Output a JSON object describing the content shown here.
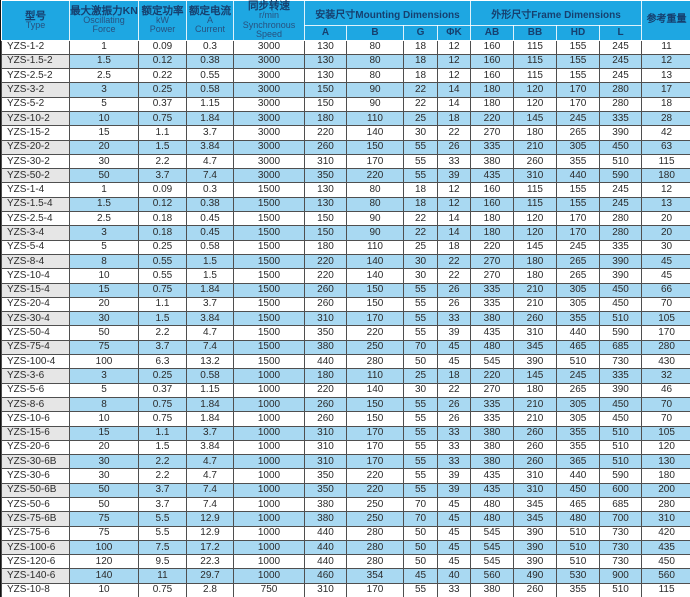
{
  "colors": {
    "header_bg": "#1ea7e2",
    "row_bg": "#ffffff",
    "row_alt_bg": "#a9d9f2",
    "type_col_alt_bg": "#e6e6e6",
    "header_text": "#16406f",
    "body_text": "#2b2b2b",
    "border": "#4f4f4f"
  },
  "table": {
    "headers": {
      "type_zh": "型号",
      "type_en": "Type",
      "force_zh": "最大激振力KN",
      "force_en1": "Oscillating",
      "force_en2": "Force",
      "power_zh": "额定功率",
      "power_en1": "kW",
      "power_en2": "Power",
      "current_zh": "额定电流",
      "current_en1": "A",
      "current_en2": "Current",
      "speed_zh": "同步转速",
      "speed_en1": "r/min",
      "speed_en2": "Synchronous",
      "speed_en3": "Speed",
      "mounting_group": "安装尺寸Mounting Dimensions",
      "frame_group": "外形尺寸Frame Dimensions",
      "weight": "参考重量",
      "mounting_cols": [
        "A",
        "B",
        "G",
        "ΦK"
      ],
      "frame_cols": [
        "AB",
        "BB",
        "HD",
        "L"
      ]
    },
    "rows": [
      [
        "YZS-1-2",
        "1",
        "0.09",
        "0.3",
        "3000",
        "130",
        "80",
        "18",
        "12",
        "160",
        "115",
        "155",
        "245",
        "11"
      ],
      [
        "YZS-1.5-2",
        "1.5",
        "0.12",
        "0.38",
        "3000",
        "130",
        "80",
        "18",
        "12",
        "160",
        "115",
        "155",
        "245",
        "12"
      ],
      [
        "YZS-2.5-2",
        "2.5",
        "0.22",
        "0.55",
        "3000",
        "130",
        "80",
        "18",
        "12",
        "160",
        "115",
        "155",
        "245",
        "13"
      ],
      [
        "YZS-3-2",
        "3",
        "0.25",
        "0.58",
        "3000",
        "150",
        "90",
        "22",
        "14",
        "180",
        "120",
        "170",
        "280",
        "17"
      ],
      [
        "YZS-5-2",
        "5",
        "0.37",
        "1.15",
        "3000",
        "150",
        "90",
        "22",
        "14",
        "180",
        "120",
        "170",
        "280",
        "18"
      ],
      [
        "YZS-10-2",
        "10",
        "0.75",
        "1.84",
        "3000",
        "180",
        "110",
        "25",
        "18",
        "220",
        "145",
        "245",
        "335",
        "28"
      ],
      [
        "YZS-15-2",
        "15",
        "1.1",
        "3.7",
        "3000",
        "220",
        "140",
        "30",
        "22",
        "270",
        "180",
        "265",
        "390",
        "42"
      ],
      [
        "YZS-20-2",
        "20",
        "1.5",
        "3.84",
        "3000",
        "260",
        "150",
        "55",
        "26",
        "335",
        "210",
        "305",
        "450",
        "63"
      ],
      [
        "YZS-30-2",
        "30",
        "2.2",
        "4.7",
        "3000",
        "310",
        "170",
        "55",
        "33",
        "380",
        "260",
        "355",
        "510",
        "115"
      ],
      [
        "YZS-50-2",
        "50",
        "3.7",
        "7.4",
        "3000",
        "350",
        "220",
        "55",
        "39",
        "435",
        "310",
        "440",
        "590",
        "180"
      ],
      [
        "YZS-1-4",
        "1",
        "0.09",
        "0.3",
        "1500",
        "130",
        "80",
        "18",
        "12",
        "160",
        "115",
        "155",
        "245",
        "12"
      ],
      [
        "YZS-1.5-4",
        "1.5",
        "0.12",
        "0.38",
        "1500",
        "130",
        "80",
        "18",
        "12",
        "160",
        "115",
        "155",
        "245",
        "13"
      ],
      [
        "YZS-2.5-4",
        "2.5",
        "0.18",
        "0.45",
        "1500",
        "150",
        "90",
        "22",
        "14",
        "180",
        "120",
        "170",
        "280",
        "20"
      ],
      [
        "YZS-3-4",
        "3",
        "0.18",
        "0.45",
        "1500",
        "150",
        "90",
        "22",
        "14",
        "180",
        "120",
        "170",
        "280",
        "20"
      ],
      [
        "YZS-5-4",
        "5",
        "0.25",
        "0.58",
        "1500",
        "180",
        "110",
        "25",
        "18",
        "220",
        "145",
        "245",
        "335",
        "30"
      ],
      [
        "YZS-8-4",
        "8",
        "0.55",
        "1.5",
        "1500",
        "220",
        "140",
        "30",
        "22",
        "270",
        "180",
        "265",
        "390",
        "45"
      ],
      [
        "YZS-10-4",
        "10",
        "0.55",
        "1.5",
        "1500",
        "220",
        "140",
        "30",
        "22",
        "270",
        "180",
        "265",
        "390",
        "45"
      ],
      [
        "YZS-15-4",
        "15",
        "0.75",
        "1.84",
        "1500",
        "260",
        "150",
        "55",
        "26",
        "335",
        "210",
        "305",
        "450",
        "66"
      ],
      [
        "YZS-20-4",
        "20",
        "1.1",
        "3.7",
        "1500",
        "260",
        "150",
        "55",
        "26",
        "335",
        "210",
        "305",
        "450",
        "70"
      ],
      [
        "YZS-30-4",
        "30",
        "1.5",
        "3.84",
        "1500",
        "310",
        "170",
        "55",
        "33",
        "380",
        "260",
        "355",
        "510",
        "105"
      ],
      [
        "YZS-50-4",
        "50",
        "2.2",
        "4.7",
        "1500",
        "350",
        "220",
        "55",
        "39",
        "435",
        "310",
        "440",
        "590",
        "170"
      ],
      [
        "YZS-75-4",
        "75",
        "3.7",
        "7.4",
        "1500",
        "380",
        "250",
        "70",
        "45",
        "480",
        "345",
        "465",
        "685",
        "280"
      ],
      [
        "YZS-100-4",
        "100",
        "6.3",
        "13.2",
        "1500",
        "440",
        "280",
        "50",
        "45",
        "545",
        "390",
        "510",
        "730",
        "430"
      ],
      [
        "YZS-3-6",
        "3",
        "0.25",
        "0.58",
        "1000",
        "180",
        "110",
        "25",
        "18",
        "220",
        "145",
        "245",
        "335",
        "32"
      ],
      [
        "YZS-5-6",
        "5",
        "0.37",
        "1.15",
        "1000",
        "220",
        "140",
        "30",
        "22",
        "270",
        "180",
        "265",
        "390",
        "46"
      ],
      [
        "YZS-8-6",
        "8",
        "0.75",
        "1.84",
        "1000",
        "260",
        "150",
        "55",
        "26",
        "335",
        "210",
        "305",
        "450",
        "70"
      ],
      [
        "YZS-10-6",
        "10",
        "0.75",
        "1.84",
        "1000",
        "260",
        "150",
        "55",
        "26",
        "335",
        "210",
        "305",
        "450",
        "70"
      ],
      [
        "YZS-15-6",
        "15",
        "1.1",
        "3.7",
        "1000",
        "310",
        "170",
        "55",
        "33",
        "380",
        "260",
        "355",
        "510",
        "105"
      ],
      [
        "YZS-20-6",
        "20",
        "1.5",
        "3.84",
        "1000",
        "310",
        "170",
        "55",
        "33",
        "380",
        "260",
        "355",
        "510",
        "120"
      ],
      [
        "YZS-30-6B",
        "30",
        "2.2",
        "4.7",
        "1000",
        "310",
        "170",
        "55",
        "33",
        "380",
        "260",
        "365",
        "510",
        "130"
      ],
      [
        "YZS-30-6",
        "30",
        "2.2",
        "4.7",
        "1000",
        "350",
        "220",
        "55",
        "39",
        "435",
        "310",
        "440",
        "590",
        "180"
      ],
      [
        "YZS-50-6B",
        "50",
        "3.7",
        "7.4",
        "1000",
        "350",
        "220",
        "55",
        "39",
        "435",
        "310",
        "450",
        "600",
        "200"
      ],
      [
        "YZS-50-6",
        "50",
        "3.7",
        "7.4",
        "1000",
        "380",
        "250",
        "70",
        "45",
        "480",
        "345",
        "465",
        "685",
        "280"
      ],
      [
        "YZS-75-6B",
        "75",
        "5.5",
        "12.9",
        "1000",
        "380",
        "250",
        "70",
        "45",
        "480",
        "345",
        "480",
        "700",
        "310"
      ],
      [
        "YZS-75-6",
        "75",
        "5.5",
        "12.9",
        "1000",
        "440",
        "280",
        "50",
        "45",
        "545",
        "390",
        "510",
        "730",
        "420"
      ],
      [
        "YZS-100-6",
        "100",
        "7.5",
        "17.2",
        "1000",
        "440",
        "280",
        "50",
        "45",
        "545",
        "390",
        "510",
        "730",
        "435"
      ],
      [
        "YZS-120-6",
        "120",
        "9.5",
        "22.3",
        "1000",
        "440",
        "280",
        "50",
        "45",
        "545",
        "390",
        "510",
        "730",
        "450"
      ],
      [
        "YZS-140-6",
        "140",
        "11",
        "29.7",
        "1000",
        "460",
        "354",
        "45",
        "40",
        "560",
        "490",
        "530",
        "900",
        "560"
      ],
      [
        "YZS-10-8",
        "10",
        "0.75",
        "2.8",
        "750",
        "310",
        "170",
        "55",
        "33",
        "380",
        "260",
        "355",
        "510",
        "115"
      ]
    ]
  }
}
